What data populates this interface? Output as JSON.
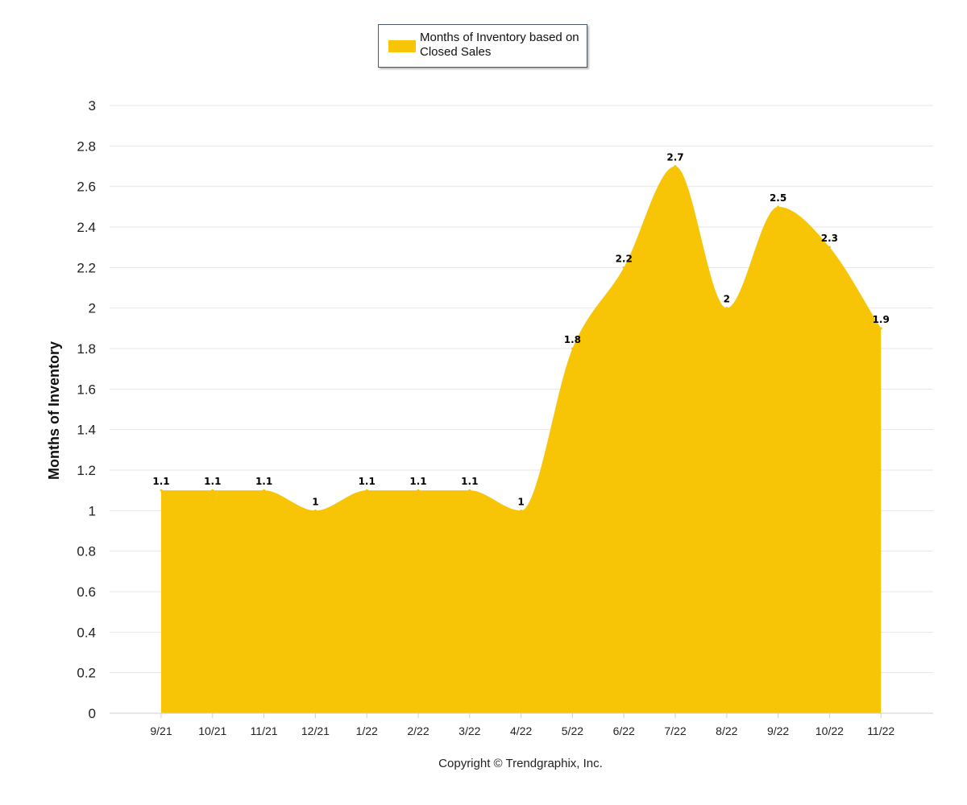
{
  "legend": {
    "label": "Months of Inventory based on Closed Sales",
    "color": "#f7c406"
  },
  "copyright": "Copyright © Trendgraphix, Inc.",
  "chart_data": {
    "type": "area",
    "title": "",
    "xlabel": "",
    "ylabel": "Months of Inventory",
    "categories": [
      "9/21",
      "10/21",
      "11/21",
      "12/21",
      "1/22",
      "2/22",
      "3/22",
      "4/22",
      "5/22",
      "6/22",
      "7/22",
      "8/22",
      "9/22",
      "10/22",
      "11/22"
    ],
    "series": [
      {
        "name": "Months of Inventory based on Closed Sales",
        "values": [
          1.1,
          1.1,
          1.1,
          1,
          1.1,
          1.1,
          1.1,
          1,
          1.8,
          2.2,
          2.7,
          2,
          2.5,
          2.3,
          1.9
        ],
        "labels": [
          "1.1",
          "1.1",
          "1.1",
          "1",
          "1.1",
          "1.1",
          "1.1",
          "1",
          "1.8",
          "2.2",
          "2.7",
          "2",
          "2.5",
          "2.3",
          "1.9"
        ],
        "color": "#f7c406"
      }
    ],
    "ylim": [
      0,
      3
    ],
    "yticks": [
      "0",
      "0.2",
      "0.4",
      "0.6",
      "0.8",
      "1",
      "1.2",
      "1.4",
      "1.6",
      "1.8",
      "2",
      "2.2",
      "2.4",
      "2.6",
      "2.8",
      "3"
    ],
    "grid": true,
    "legend_position": "top-center"
  }
}
